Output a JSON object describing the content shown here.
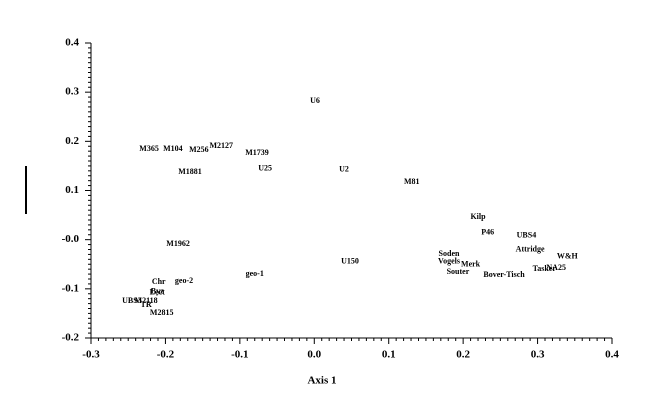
{
  "chart_data": {
    "type": "scatter",
    "xlabel": "Axis 1",
    "labels": [
      "U6",
      "M365",
      "M104",
      "M256",
      "M2127",
      "M1739",
      "U25",
      "U2",
      "M1881",
      "M81",
      "Kilp",
      "P46",
      "UBS4",
      "M1962",
      "Attridge",
      "Soden",
      "W&H",
      "U150",
      "Vogels",
      "Merk",
      "NA25",
      "Tasker",
      "Souter",
      "Bover-Tisch",
      "geo-1",
      "geo-2",
      "Chr",
      "Lect",
      "Byz",
      "UBS3",
      "M2118",
      "TR",
      "M2815"
    ],
    "x": [
      0.001,
      -0.222,
      -0.19,
      -0.155,
      -0.125,
      -0.077,
      -0.066,
      0.04,
      -0.167,
      0.131,
      0.22,
      0.233,
      0.285,
      -0.183,
      0.29,
      0.181,
      0.34,
      0.048,
      0.181,
      0.21,
      0.325,
      0.309,
      0.193,
      0.255,
      -0.08,
      -0.175,
      -0.209,
      -0.211,
      -0.211,
      -0.245,
      -0.226,
      -0.226,
      -0.205
    ],
    "y": [
      0.282,
      0.184,
      0.184,
      0.182,
      0.19,
      0.176,
      0.144,
      0.142,
      0.137,
      0.117,
      0.046,
      0.014,
      0.008,
      -0.009,
      -0.02,
      -0.029,
      -0.035,
      -0.045,
      -0.045,
      -0.051,
      -0.058,
      -0.06,
      -0.066,
      -0.072,
      -0.07,
      -0.084,
      -0.086,
      -0.108,
      -0.106,
      -0.125,
      -0.125,
      -0.133,
      -0.149
    ],
    "xlim": [
      -0.3,
      0.4
    ],
    "ylim": [
      -0.2,
      0.4
    ],
    "xticks": [
      -0.3,
      -0.2,
      -0.1,
      {
        "value": 0,
        "label": "0.0"
      },
      0.1,
      0.2,
      0.3,
      0.4
    ],
    "yticks": [
      -0.2,
      -0.1,
      {
        "value": 0,
        "label": "-0.0"
      },
      0.1,
      0.2,
      0.3,
      0.4
    ]
  }
}
